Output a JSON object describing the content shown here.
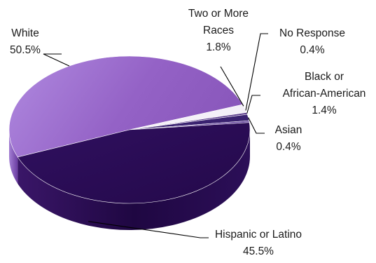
{
  "chart_data": {
    "type": "pie",
    "title": "",
    "three_d": true,
    "slices": [
      {
        "key": "white",
        "name": [
          "White"
        ],
        "value": 50.5,
        "value_label": "50.5%",
        "color": "#9060c0"
      },
      {
        "key": "twomore",
        "name": [
          "Two or More",
          "Races"
        ],
        "value": 1.8,
        "value_label": "1.8%",
        "color": "#f4f0f8"
      },
      {
        "key": "noresp",
        "name": [
          "No Response"
        ],
        "value": 0.4,
        "value_label": "0.4%",
        "color": "#5a3a8a"
      },
      {
        "key": "black",
        "name": [
          "Black or",
          "African-American"
        ],
        "value": 1.4,
        "value_label": "1.4%",
        "color": "#3a2270"
      },
      {
        "key": "asian",
        "name": [
          "Asian"
        ],
        "value": 0.4,
        "value_label": "0.4%",
        "color": "#6a4aa0"
      },
      {
        "key": "hispanic",
        "name": [
          "Hispanic or Latino"
        ],
        "value": 45.5,
        "value_label": "45.5%",
        "color": "#2e1258"
      }
    ]
  }
}
